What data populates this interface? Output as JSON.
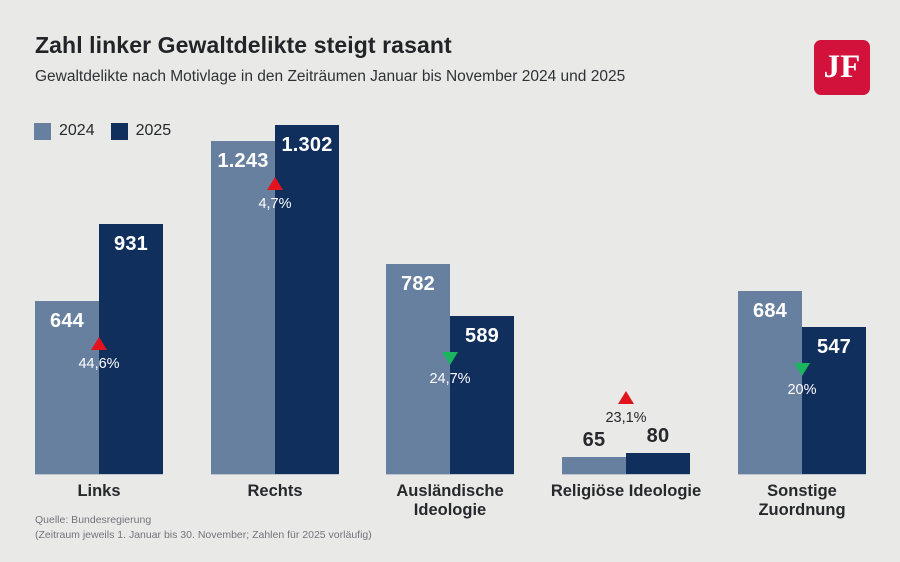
{
  "header": {
    "title": "Zahl linker Gewaltdelikte steigt rasant",
    "subtitle": "Gewaltdelikte nach Motivlage in den Zeiträumen Januar bis November 2024 und 2025",
    "logo_text": "JF",
    "logo_color": "#d2123a"
  },
  "chart_data": {
    "type": "bar",
    "title": "Zahl linker Gewaltdelikte steigt rasant",
    "subtitle": "Gewaltdelikte nach Motivlage in den Zeiträumen Januar bis November 2024 und 2025",
    "categories": [
      "Links",
      "Rechts",
      "Ausländische Ideologie",
      "Religiöse Ideologie",
      "Sonstige Zuordnung"
    ],
    "category_display": [
      "Links",
      "Rechts",
      "Ausländische\nIdeologie",
      "Religiöse Ideologie",
      "Sonstige\nZuordnung"
    ],
    "series": [
      {
        "name": "2024",
        "color": "#68809f",
        "values": [
          644,
          1243,
          782,
          65,
          684
        ],
        "labels": [
          "644",
          "1.243",
          "782",
          "65",
          "684"
        ]
      },
      {
        "name": "2025",
        "color": "#112f5c",
        "values": [
          931,
          1302,
          589,
          80,
          547
        ],
        "labels": [
          "931",
          "1.302",
          "589",
          "80",
          "547"
        ]
      }
    ],
    "changes": [
      {
        "label": "44,6%",
        "direction": "up"
      },
      {
        "label": "4,7%",
        "direction": "up"
      },
      {
        "label": "24,7%",
        "direction": "down"
      },
      {
        "label": "23,1%",
        "direction": "up"
      },
      {
        "label": "20%",
        "direction": "down"
      }
    ],
    "change_colors": {
      "up": "#e1141e",
      "down": "#1bb55f"
    },
    "ylim": [
      0,
      1302
    ],
    "grid": false,
    "legend_position": "top-left",
    "background": "#e9e9e8"
  },
  "source": {
    "line1": "Quelle: Bundesregierung",
    "line2": "(Zeitraum jeweils 1. Januar bis 30. November; Zahlen für 2025 vorläufig)"
  }
}
